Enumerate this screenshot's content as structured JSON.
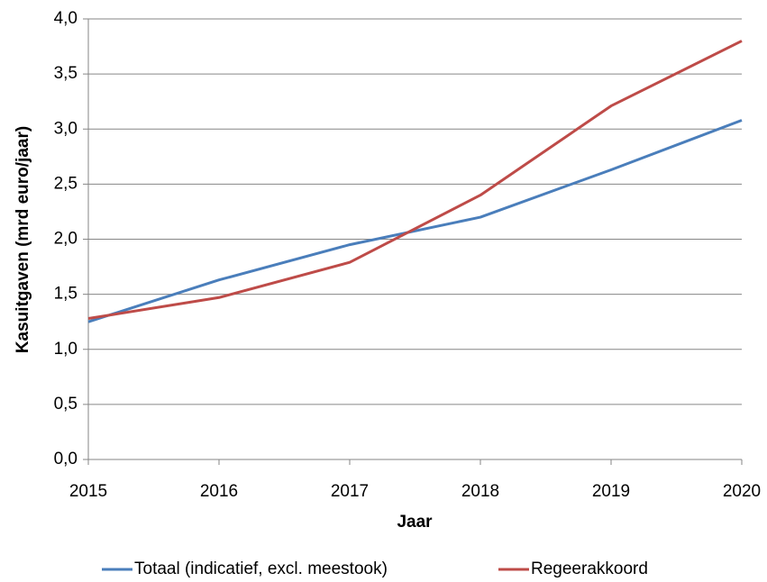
{
  "chart_data": {
    "type": "line",
    "xlabel": "Jaar",
    "ylabel": "Kasuitgaven (mrd euro/jaar)",
    "x": [
      2015,
      2016,
      2017,
      2018,
      2019,
      2020
    ],
    "series": [
      {
        "name": "Totaal (indicatief, excl. meestook)",
        "color": "#4a7ebb",
        "values": [
          1.25,
          1.63,
          1.95,
          2.2,
          2.63,
          3.08
        ]
      },
      {
        "name": "Regeerakkoord",
        "color": "#be4b48",
        "values": [
          1.28,
          1.47,
          1.79,
          2.4,
          3.21,
          3.8
        ]
      }
    ],
    "xlim": [
      2015,
      2020
    ],
    "xticks": [
      2015,
      2016,
      2017,
      2018,
      2019,
      2020
    ],
    "ylim": [
      0,
      4
    ],
    "yticks": [
      {
        "value": 0,
        "label": "0,0"
      },
      {
        "value": 0.5,
        "label": "0,5"
      },
      {
        "value": 1,
        "label": "1,0"
      },
      {
        "value": 1.5,
        "label": "1,5"
      },
      {
        "value": 2,
        "label": "2,0"
      },
      {
        "value": 2.5,
        "label": "2,5"
      },
      {
        "value": 3,
        "label": "3,0"
      },
      {
        "value": 3.5,
        "label": "3,5"
      },
      {
        "value": 4,
        "label": "4,0"
      }
    ],
    "grid": true,
    "legend": "bottom"
  }
}
